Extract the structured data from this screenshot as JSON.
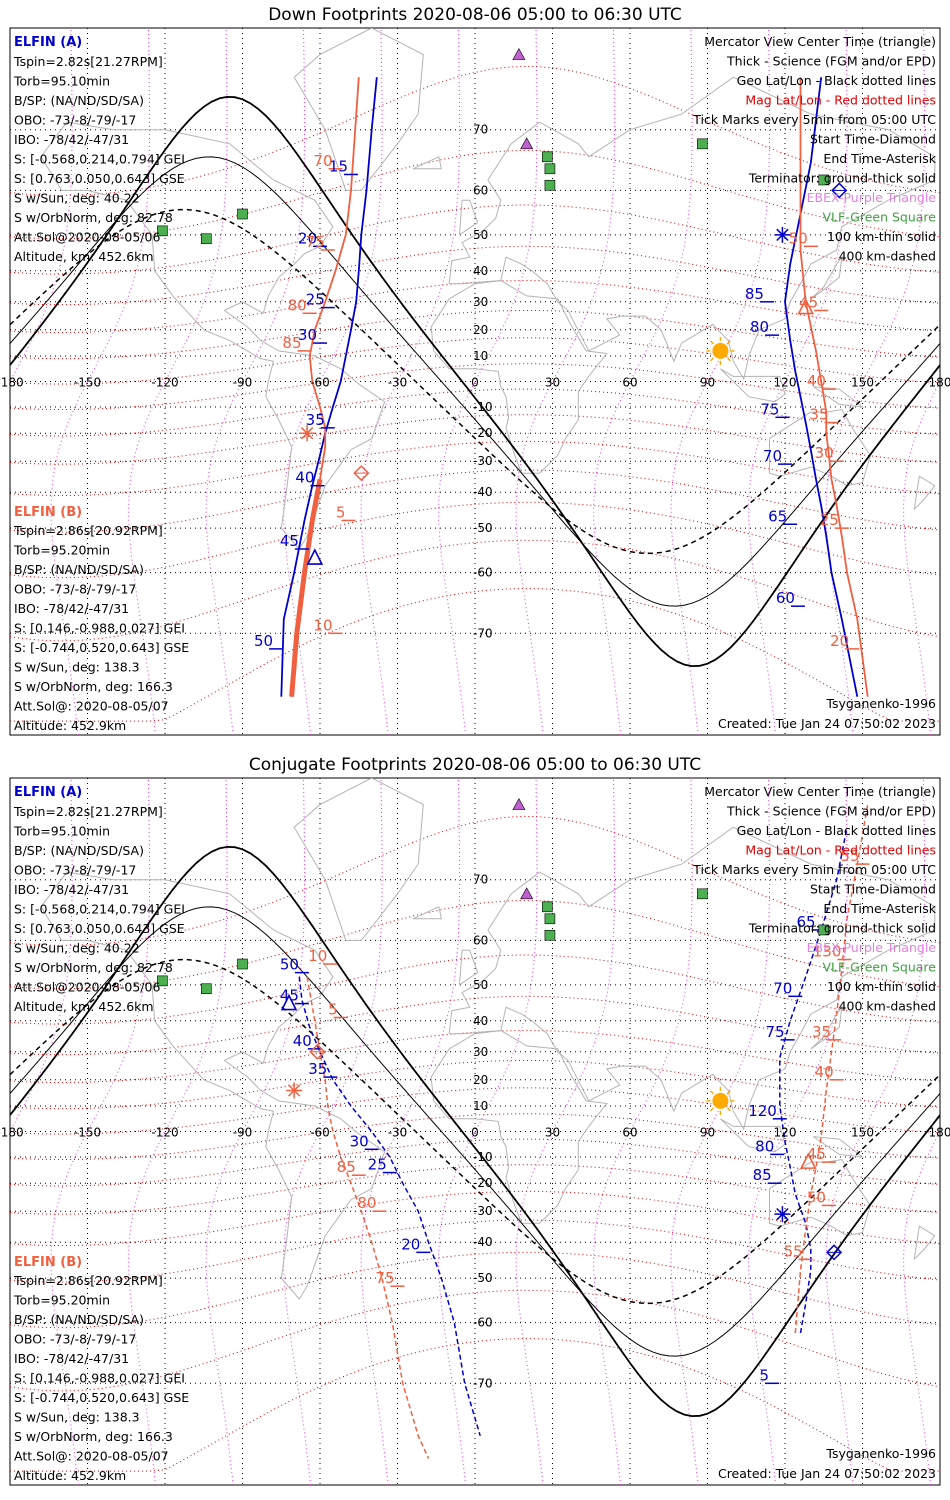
{
  "colors": {
    "elfin_a": "#0000cc",
    "elfin_b": "#f06040",
    "terminator": "#000000",
    "geo_grid": "#000000",
    "mag_grid": "#e00000",
    "lonlat_mag_lines": "#e040e0",
    "coast": "#b4b4b4",
    "legend_red": "#e00000",
    "legend_purple": "#e080e0",
    "legend_green": "#40a040",
    "sun": "#ffaa00",
    "vlf": "#4caf50",
    "ebex": "#c060d0"
  },
  "icons": {
    "sun": "sun-icon",
    "vlf_station": "green-square-icon",
    "ebex": "purple-triangle-icon",
    "start": "diamond-icon",
    "end": "asterisk-icon",
    "center": "triangle-icon"
  },
  "legend_right": [
    {
      "text": "Mercator View Center Time (triangle)",
      "color": "#000000"
    },
    {
      "text": "Thick - Science (FGM and/or EPD)",
      "color": "#000000"
    },
    {
      "text": "Geo Lat/Lon - Black dotted lines",
      "color": "#000000"
    },
    {
      "text": "Mag Lat/Lon - Red dotted lines",
      "color": "#e00000"
    },
    {
      "text": "Tick Marks every 5min from 05:00 UTC",
      "color": "#000000"
    },
    {
      "text": "Start Time-Diamond",
      "color": "#000000"
    },
    {
      "text": "End Time-Asterisk",
      "color": "#000000"
    },
    {
      "text": "Terminator: ground-thick solid",
      "color": "#000000"
    },
    {
      "text": "EBEX-Purple Triangle",
      "color": "#e080e0"
    },
    {
      "text": "VLF-Green Square",
      "color": "#40a040"
    },
    {
      "text": "100 km-thin solid",
      "color": "#000000"
    },
    {
      "text": "400 km-dashed",
      "color": "#000000"
    }
  ],
  "info_a": {
    "header": "ELFIN (A)",
    "lines": [
      "Tspin=2.82s[21.27RPM]",
      "Torb=95.10min",
      "B/SP: (NA/ND/SD/SA)",
      "OBO: -73/-8/-79/-17",
      "IBO: -78/42/-47/31",
      "S: [-0.568,0.214,0.794] GEI",
      "S: [0.763,0.050,0.643] GSE",
      "S w/Sun, deg: 40.22",
      "S w/OrbNorm, deg: 82.78",
      "Att.Sol@2020-08-05/06",
      "Altitude, km: 452.6km"
    ]
  },
  "info_b": {
    "header": "ELFIN (B)",
    "lines": [
      "Tspin=2.86s[20.92RPM]",
      "Torb=95.20min",
      "B/SP: (NA/ND/SD/SA)",
      "OBO: -73/-8/-79/-17",
      "IBO: -78/42/-47/31",
      "S: [0.146,-0.988,0.027] GEI",
      "S: [-0.744,0.520,0.643] GSE",
      "S w/Sun, deg: 138.3",
      "S w/OrbNorm, deg: 166.3",
      "Att.Sol@: 2020-08-05/07",
      "Altitude: 452.9km"
    ]
  },
  "model_label": "Tsyganenko-1996",
  "created_label": "Created: Tue Jan 24 07:50:02 2023",
  "chart_data": [
    {
      "type": "scatter",
      "title": "Down Footprints 2020-08-06 05:00 to 06:30 UTC",
      "projection": "mercator",
      "xlim": [
        -180,
        180
      ],
      "ylim": [
        -80,
        80
      ],
      "x_ticks": [
        -180,
        -150,
        -120,
        -90,
        -60,
        -30,
        0,
        30,
        60,
        90,
        120,
        150,
        180
      ],
      "y_ticks": [
        -70,
        -60,
        -50,
        -40,
        -30,
        -20,
        -10,
        0,
        10,
        20,
        30,
        40,
        50,
        60,
        70
      ],
      "x_tick_labels": [
        "-180",
        "-150",
        "-120",
        "-90",
        "-60",
        "-30",
        "0",
        "30",
        "60",
        "90",
        "120",
        "150",
        "180"
      ],
      "y_tick_labels": [
        "-70",
        "-60",
        "-50",
        "-40",
        "-30",
        "-20",
        "-10",
        "0",
        "10",
        "20",
        "30",
        "40",
        "50",
        "60",
        "70"
      ],
      "series": [
        {
          "name": "ELFIN (A)",
          "color": "#0000cc",
          "x": [
            -75,
            -74,
            -70,
            -66,
            -63,
            -60,
            -58,
            -55,
            -52,
            -50,
            -48,
            -46,
            -45,
            -44,
            -42,
            -40,
            -38
          ],
          "y": [
            -77,
            -68,
            -60,
            -48,
            -38,
            -28,
            -20,
            -10,
            0,
            10,
            20,
            30,
            40,
            50,
            60,
            70,
            76
          ]
        },
        {
          "name": "ELFIN (B)",
          "color": "#f06040",
          "x": [
            -71,
            -69,
            -66,
            -63,
            -60,
            -58,
            -58,
            -60,
            -63,
            -64,
            -62,
            -58,
            -54,
            -50,
            -48,
            -45
          ],
          "y": [
            -77,
            -70,
            -60,
            -48,
            -36,
            -25,
            -18,
            -10,
            0,
            10,
            20,
            30,
            40,
            50,
            60,
            76
          ]
        },
        {
          "name": "ELFIN (A) east",
          "color": "#0000cc",
          "x": [
            148,
            142,
            138,
            136,
            134,
            132,
            130,
            128,
            126,
            124,
            122,
            120,
            122,
            126,
            130,
            134
          ],
          "y": [
            -77,
            -68,
            -60,
            -52,
            -44,
            -36,
            -26,
            -16,
            -6,
            4,
            16,
            30,
            42,
            55,
            65,
            76
          ]
        },
        {
          "name": "ELFIN (B) east",
          "color": "#f06040",
          "x": [
            152,
            148,
            144,
            142,
            140,
            138,
            137,
            136,
            136,
            134,
            132,
            128,
            126,
            126,
            126
          ],
          "y": [
            -77,
            -68,
            -60,
            -52,
            -44,
            -36,
            -28,
            -20,
            -12,
            0,
            12,
            30,
            46,
            60,
            76
          ]
        }
      ],
      "tick_labels_a": [
        {
          "t": "15",
          "lon": -48,
          "lat": 63
        },
        {
          "t": "20",
          "lon": -60,
          "lat": 47
        },
        {
          "t": "25",
          "lon": -57,
          "lat": 28
        },
        {
          "t": "30",
          "lon": -60,
          "lat": 15
        },
        {
          "t": "35",
          "lon": -57,
          "lat": -18
        },
        {
          "t": "40",
          "lon": -61,
          "lat": -38
        },
        {
          "t": "45",
          "lon": -67,
          "lat": -55
        },
        {
          "t": "50",
          "lon": -77,
          "lat": -72
        },
        {
          "t": "85",
          "lon": 113,
          "lat": 30
        },
        {
          "t": "80",
          "lon": 115,
          "lat": 18
        },
        {
          "t": "75",
          "lon": 119,
          "lat": -14
        },
        {
          "t": "70",
          "lon": 120,
          "lat": -31
        },
        {
          "t": "65",
          "lon": 122,
          "lat": -49
        },
        {
          "t": "60",
          "lon": 125,
          "lat": -66
        }
      ],
      "tick_labels_b": [
        {
          "t": "70",
          "lon": -54,
          "lat": 64
        },
        {
          "t": "75",
          "lon": -57,
          "lat": 46
        },
        {
          "t": "80",
          "lon": -64,
          "lat": 26
        },
        {
          "t": "85",
          "lon": -66,
          "lat": 12
        },
        {
          "t": "5",
          "lon": -49,
          "lat": -48
        },
        {
          "t": "10",
          "lon": -54,
          "lat": -70
        },
        {
          "t": "50",
          "lon": 130,
          "lat": 47
        },
        {
          "t": "45",
          "lon": 134,
          "lat": 27
        },
        {
          "t": "40",
          "lon": 137,
          "lat": -3
        },
        {
          "t": "35",
          "lon": 138,
          "lat": -16
        },
        {
          "t": "30",
          "lon": 140,
          "lat": -30
        },
        {
          "t": "25",
          "lon": 142,
          "lat": -50
        },
        {
          "t": "20",
          "lon": 146,
          "lat": -72
        }
      ]
    },
    {
      "type": "scatter",
      "title": "Conjugate Footprints 2020-08-06 05:00 to 06:30 UTC",
      "projection": "mercator",
      "xlim": [
        -180,
        180
      ],
      "ylim": [
        -80,
        80
      ],
      "x_ticks": [
        -180,
        -150,
        -120,
        -90,
        -60,
        -30,
        0,
        30,
        60,
        90,
        120,
        150,
        180
      ],
      "y_ticks": [
        -70,
        -60,
        -50,
        -40,
        -30,
        -20,
        -10,
        0,
        10,
        20,
        30,
        40,
        50,
        60,
        70
      ],
      "x_tick_labels": [
        "-180",
        "-150",
        "-120",
        "-90",
        "-60",
        "-30",
        "0",
        "30",
        "60",
        "90",
        "120",
        "150",
        "180"
      ],
      "y_tick_labels": [
        "-70",
        "-60",
        "-50",
        "-40",
        "-30",
        "-20",
        "-10",
        "0",
        "10",
        "20",
        "30",
        "40",
        "50",
        "60",
        "70"
      ],
      "series": [
        {
          "name": "ELFIN (A)",
          "color": "#0000cc",
          "x": [
            -68,
            -67,
            -64,
            -60,
            -55,
            -48,
            -40,
            -33,
            -28,
            -22,
            -18,
            -13,
            -8,
            -4,
            2
          ],
          "y": [
            52,
            46,
            38,
            30,
            20,
            10,
            0,
            -10,
            -20,
            -30,
            -40,
            -50,
            -60,
            -70,
            -76
          ]
        },
        {
          "name": "ELFIN (B)",
          "color": "#f06040",
          "x": [
            -65,
            -62,
            -60,
            -58,
            -57,
            -55,
            -52,
            -48,
            -44,
            -40,
            -36,
            -32,
            -28,
            -22,
            -18
          ],
          "y": [
            52,
            40,
            30,
            20,
            10,
            0,
            -10,
            -20,
            -30,
            -40,
            -50,
            -60,
            -70,
            -76,
            -78
          ]
        },
        {
          "name": "ELFIN (A) east",
          "color": "#0000cc",
          "x": [
            126,
            128,
            130,
            130,
            128,
            124,
            122,
            120,
            118,
            118,
            122,
            128,
            134,
            140,
            144
          ],
          "y": [
            -62,
            -56,
            -48,
            -42,
            -34,
            -24,
            -14,
            -4,
            10,
            28,
            40,
            52,
            62,
            70,
            76
          ]
        },
        {
          "name": "ELFIN (B) east",
          "color": "#f06040",
          "x": [
            124,
            126,
            128,
            130,
            132,
            134,
            136,
            138,
            140,
            142,
            144,
            148,
            152
          ],
          "y": [
            -62,
            -48,
            -36,
            -24,
            -14,
            -2,
            16,
            30,
            42,
            54,
            64,
            72,
            78
          ]
        }
      ],
      "tick_labels_a": [
        {
          "t": "50",
          "lon": -67,
          "lat": 53
        },
        {
          "t": "45",
          "lon": -67,
          "lat": 45
        },
        {
          "t": "40",
          "lon": -62,
          "lat": 31
        },
        {
          "t": "35",
          "lon": -56,
          "lat": 21
        },
        {
          "t": "30",
          "lon": -40,
          "lat": -7
        },
        {
          "t": "25",
          "lon": -33,
          "lat": -16
        },
        {
          "t": "20",
          "lon": -20,
          "lat": -43
        },
        {
          "t": "65",
          "lon": 133,
          "lat": 62
        },
        {
          "t": "70",
          "lon": 124,
          "lat": 47
        },
        {
          "t": "75",
          "lon": 121,
          "lat": 34
        },
        {
          "t": "120",
          "lon": 118,
          "lat": 5
        },
        {
          "t": "80",
          "lon": 117,
          "lat": -9
        },
        {
          "t": "85",
          "lon": 116,
          "lat": -20
        },
        {
          "t": "5",
          "lon": 115,
          "lat": -70
        }
      ],
      "tick_labels_b": [
        {
          "t": "10",
          "lon": -56,
          "lat": 55
        },
        {
          "t": "5",
          "lon": -52,
          "lat": 41
        },
        {
          "t": "85",
          "lon": -45,
          "lat": -17
        },
        {
          "t": "80",
          "lon": -37,
          "lat": -30
        },
        {
          "t": "75",
          "lon": -30,
          "lat": -52
        },
        {
          "t": "130",
          "lon": 143,
          "lat": 56
        },
        {
          "t": "35",
          "lon": 139,
          "lat": 34
        },
        {
          "t": "40",
          "lon": 140,
          "lat": 20
        },
        {
          "t": "45",
          "lon": 137,
          "lat": -12
        },
        {
          "t": "50",
          "lon": 137,
          "lat": -28
        },
        {
          "t": "55",
          "lon": 128,
          "lat": -45
        },
        {
          "t": "55",
          "lon": 150,
          "lat": 72
        }
      ]
    }
  ],
  "markers": {
    "down": {
      "sun": {
        "lon": 95,
        "lat": 12
      },
      "ebex": [
        {
          "lon": 17,
          "lat": 78
        },
        {
          "lon": 20,
          "lat": 68
        }
      ],
      "vlf": [
        {
          "lon": 28,
          "lat": 66
        },
        {
          "lon": 29,
          "lat": 64
        },
        {
          "lon": 29,
          "lat": 61
        },
        {
          "lon": -90,
          "lat": 55
        },
        {
          "lon": -121,
          "lat": 51
        },
        {
          "lon": -104,
          "lat": 49
        },
        {
          "lon": 88,
          "lat": 68
        },
        {
          "lon": 135,
          "lat": 62
        }
      ],
      "start_a": {
        "lon": 141,
        "lat": 60
      },
      "end_a": {
        "lon": 119,
        "lat": 50
      },
      "start_b": {
        "lon": -44,
        "lat": -34
      },
      "end_b": {
        "lon": -65,
        "lat": -20
      },
      "center_a": {
        "lon": -62,
        "lat": -57
      },
      "center_b": {
        "lon": 128,
        "lat": 28
      }
    },
    "conj": {
      "sun": {
        "lon": 95,
        "lat": 12
      },
      "ebex": [
        {
          "lon": 17,
          "lat": 78
        },
        {
          "lon": 20,
          "lat": 68
        }
      ],
      "vlf": [
        {
          "lon": 28,
          "lat": 66
        },
        {
          "lon": 29,
          "lat": 64
        },
        {
          "lon": 29,
          "lat": 61
        },
        {
          "lon": -90,
          "lat": 55
        },
        {
          "lon": -121,
          "lat": 51
        },
        {
          "lon": -104,
          "lat": 49
        },
        {
          "lon": 88,
          "lat": 68
        },
        {
          "lon": 135,
          "lat": 62
        }
      ],
      "start_a": {
        "lon": 139,
        "lat": -43
      },
      "end_a": {
        "lon": 119,
        "lat": -31
      },
      "start_b": {
        "lon": -61,
        "lat": 30
      },
      "end_b": {
        "lon": -70,
        "lat": 16
      },
      "center_a": {
        "lon": -72,
        "lat": 45
      },
      "center_b": {
        "lon": 129,
        "lat": -12
      }
    }
  }
}
